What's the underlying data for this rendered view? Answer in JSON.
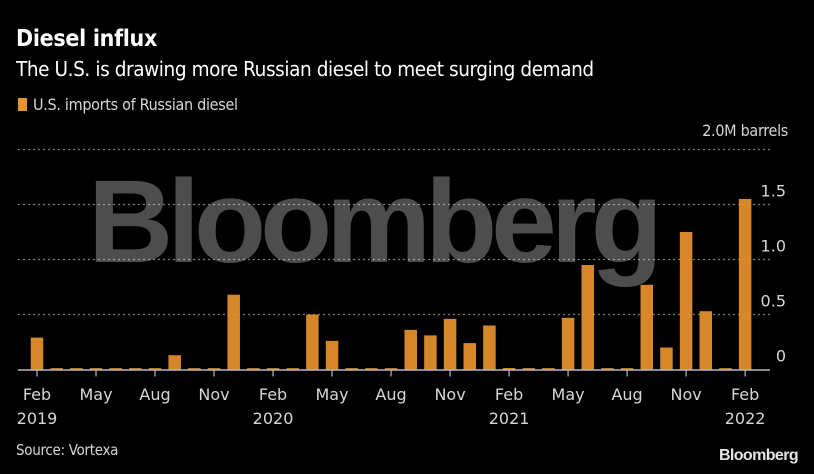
{
  "header": {
    "title": "Diesel influx",
    "subtitle": "The U.S. is drawing more Russian diesel to meet surging demand"
  },
  "legend": {
    "label": "U.S. imports of Russian diesel",
    "color": "#e8922c"
  },
  "unit_label": "2.0M barrels",
  "footer": {
    "source": "Source: Vortexa",
    "logo": "Bloomberg"
  },
  "watermark": "Bloomberg",
  "colors": {
    "background": "#000000",
    "bar": "#e8922c",
    "grid": "#7a7a7a",
    "axis": "#b8b8c0",
    "text": "#d6d6d6"
  },
  "chart_data": {
    "type": "bar",
    "title": "Diesel influx",
    "subtitle": "The U.S. is drawing more Russian diesel to meet surging demand",
    "xlabel": "",
    "ylabel": "M barrels",
    "ylim": [
      0,
      2.0
    ],
    "yticks": [
      0,
      0.5,
      1.0,
      1.5,
      2.0
    ],
    "ytick_labels": [
      "0",
      "0.5",
      "1.0",
      "1.5",
      "2.0M barrels"
    ],
    "y_axis_position": "right",
    "grid": true,
    "legend_position": "top-left",
    "xtick_labels": [
      {
        "month": "Feb",
        "year": "2019"
      },
      {
        "month": "May",
        "year": ""
      },
      {
        "month": "Aug",
        "year": ""
      },
      {
        "month": "Nov",
        "year": ""
      },
      {
        "month": "Feb",
        "year": "2020"
      },
      {
        "month": "May",
        "year": ""
      },
      {
        "month": "Aug",
        "year": ""
      },
      {
        "month": "Nov",
        "year": ""
      },
      {
        "month": "Feb",
        "year": "2021"
      },
      {
        "month": "May",
        "year": ""
      },
      {
        "month": "Aug",
        "year": ""
      },
      {
        "month": "Nov",
        "year": ""
      },
      {
        "month": "Feb",
        "year": "2022"
      }
    ],
    "categories": [
      "2019-02",
      "2019-03",
      "2019-04",
      "2019-05",
      "2019-06",
      "2019-07",
      "2019-08",
      "2019-09",
      "2019-10",
      "2019-11",
      "2019-12",
      "2020-01",
      "2020-02",
      "2020-03",
      "2020-04",
      "2020-05",
      "2020-06",
      "2020-07",
      "2020-08",
      "2020-09",
      "2020-10",
      "2020-11",
      "2020-12",
      "2021-01",
      "2021-02",
      "2021-03",
      "2021-04",
      "2021-05",
      "2021-06",
      "2021-07",
      "2021-08",
      "2021-09",
      "2021-10",
      "2021-11",
      "2021-12",
      "2022-01",
      "2022-02"
    ],
    "series": [
      {
        "name": "U.S. imports of Russian diesel",
        "color": "#e8922c",
        "values": [
          0.29,
          0,
          0,
          0,
          0,
          0,
          0,
          0.13,
          0,
          0,
          0.68,
          0,
          0,
          0,
          0.5,
          0.26,
          0,
          0,
          0,
          0.36,
          0.31,
          0.46,
          0.24,
          0.4,
          0.01,
          0,
          0,
          0.47,
          0.95,
          0,
          0,
          0.77,
          0.2,
          1.25,
          0.53,
          0,
          1.55
        ]
      }
    ]
  }
}
